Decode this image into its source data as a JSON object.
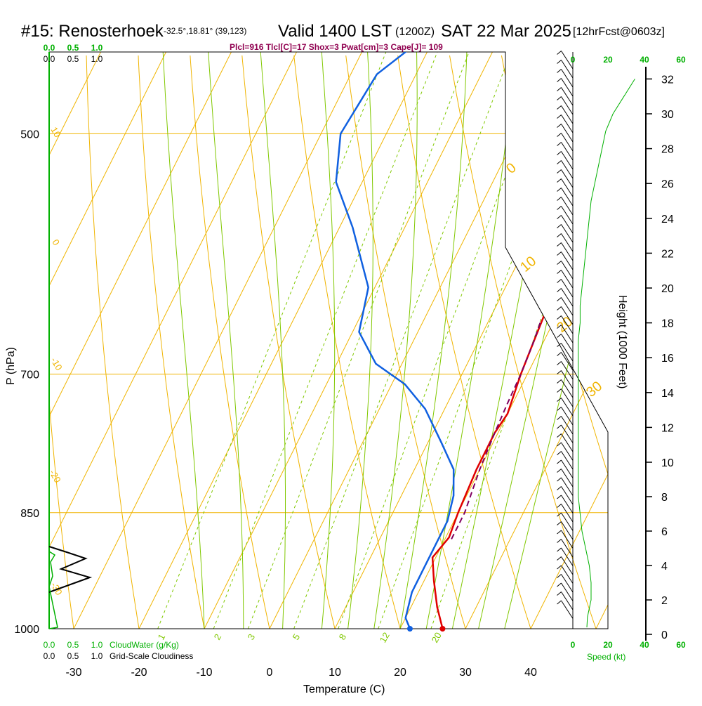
{
  "header": {
    "station": "#15: Renosterhoek",
    "coords": "-32.5°,18.81° (39,123)",
    "valid": "Valid 1400 LST",
    "utc": "(1200Z)",
    "date": "SAT 22 Mar 2025",
    "forecast": "[12hrFcst@0603z]",
    "indices": "Plcl=916 Tlcl[C]=17 Shox=3 Pwat[cm]=3 Cape[J]= 109"
  },
  "labels": {
    "ylabel": "P (hPa)",
    "xlabel": "Temperature (C)",
    "height_label": "Height (1000 Feet)",
    "cloudwater": "CloudWater (g/Kg)",
    "cloudiness": "Grid-Scale Cloudiness",
    "speed": "Speed (kt)"
  },
  "colors": {
    "isobar": "#f0b400",
    "dry_adiabat": "#f0b400",
    "moist_adiabat": "#80c800",
    "mixing_ratio": "#80c800",
    "temperature": "#e00000",
    "dewpoint": "#1060e0",
    "parcel": "#800060",
    "green_text": "#00b000",
    "indices_text": "#900050"
  },
  "chart_data": {
    "type": "line",
    "title": "Skew-T sounding",
    "xlabel": "Temperature (C)",
    "ylabel": "P (hPa)",
    "xlim": [
      -35,
      52
    ],
    "ylim": [
      1000,
      250
    ],
    "x_ticks": [
      -30,
      -20,
      -10,
      0,
      10,
      20,
      30,
      40
    ],
    "y_ticks": [
      250,
      300,
      400,
      500,
      700,
      850,
      1000
    ],
    "height_ticks": [
      0,
      2,
      4,
      6,
      8,
      10,
      12,
      14,
      16,
      18,
      20,
      22,
      24,
      26,
      28,
      30,
      32
    ],
    "isotherm_labels": [
      "10",
      "0",
      "-10",
      "-20",
      "-30"
    ],
    "dry_adiabat_labels": [
      "0",
      "10",
      "20",
      "30"
    ],
    "mixing_ratio_labels": [
      "1",
      "2",
      "3",
      "5",
      "8",
      "12",
      "20"
    ],
    "cloud_axis_ticks": [
      "0.0",
      "0.5",
      "1.0"
    ],
    "speed_axis_ticks": [
      "0",
      "20",
      "40",
      "60"
    ],
    "series": [
      {
        "name": "Temperature",
        "points": [
          [
            1000,
            26.5
          ],
          [
            970,
            24
          ],
          [
            935,
            21.5
          ],
          [
            905,
            19.5
          ],
          [
            880,
            20.5
          ],
          [
            850,
            20
          ],
          [
            800,
            19.5
          ],
          [
            760,
            19.5
          ],
          [
            740,
            20
          ],
          [
            700,
            19
          ],
          [
            670,
            18.5
          ],
          [
            640,
            18
          ],
          [
            610,
            18
          ],
          [
            580,
            18.5
          ],
          [
            550,
            18.5
          ],
          [
            530,
            18.5
          ],
          [
            500,
            17.5
          ],
          [
            460,
            15.5
          ],
          [
            420,
            12.5
          ],
          [
            380,
            9.5
          ],
          [
            340,
            6.5
          ],
          [
            300,
            4.5
          ],
          [
            280,
            4
          ],
          [
            262,
            5.5
          ]
        ]
      },
      {
        "name": "Dewpoint",
        "points": [
          [
            1000,
            21.5
          ],
          [
            985,
            20
          ],
          [
            950,
            19
          ],
          [
            920,
            19
          ],
          [
            885,
            19
          ],
          [
            860,
            19
          ],
          [
            830,
            18
          ],
          [
            800,
            16
          ],
          [
            770,
            12
          ],
          [
            735,
            7
          ],
          [
            710,
            2
          ],
          [
            690,
            -4
          ],
          [
            660,
            -9
          ],
          [
            620,
            -11
          ],
          [
            570,
            -18
          ],
          [
            535,
            -24
          ],
          [
            500,
            -27
          ],
          [
            460,
            -26
          ],
          [
            400,
            -14
          ],
          [
            380,
            -9
          ],
          [
            365,
            -6.5
          ],
          [
            340,
            -8
          ],
          [
            300,
            -10
          ],
          [
            270,
            -12
          ],
          [
            262,
            -12.5
          ]
        ]
      },
      {
        "name": "Parcel",
        "points": [
          [
            882,
            21
          ],
          [
            850,
            21
          ],
          [
            800,
            20
          ],
          [
            760,
            19.5
          ],
          [
            730,
            19.2
          ],
          [
            700,
            19
          ],
          [
            670,
            18.5
          ],
          [
            650,
            18
          ]
        ]
      }
    ],
    "surface": {
      "temperature": 26.5,
      "dewpoint": 21.5
    },
    "winds": {
      "description": "Wind barbs and wind speed profile (kt) on right panel",
      "levels_kft": [
        1,
        2,
        3,
        4,
        5,
        6,
        7,
        8,
        9,
        10,
        11,
        12,
        13,
        14,
        15,
        16,
        17,
        18,
        19,
        20,
        21,
        22,
        23,
        24,
        25,
        26,
        27,
        28,
        29,
        30,
        31,
        32
      ],
      "speed_kt": [
        8,
        10,
        10,
        9,
        7,
        5,
        4,
        3,
        3,
        3,
        3,
        3,
        3,
        3,
        3,
        3,
        3,
        4,
        4,
        5,
        6,
        7,
        8,
        9,
        10,
        12,
        14,
        16,
        18,
        22,
        28,
        34
      ]
    }
  }
}
